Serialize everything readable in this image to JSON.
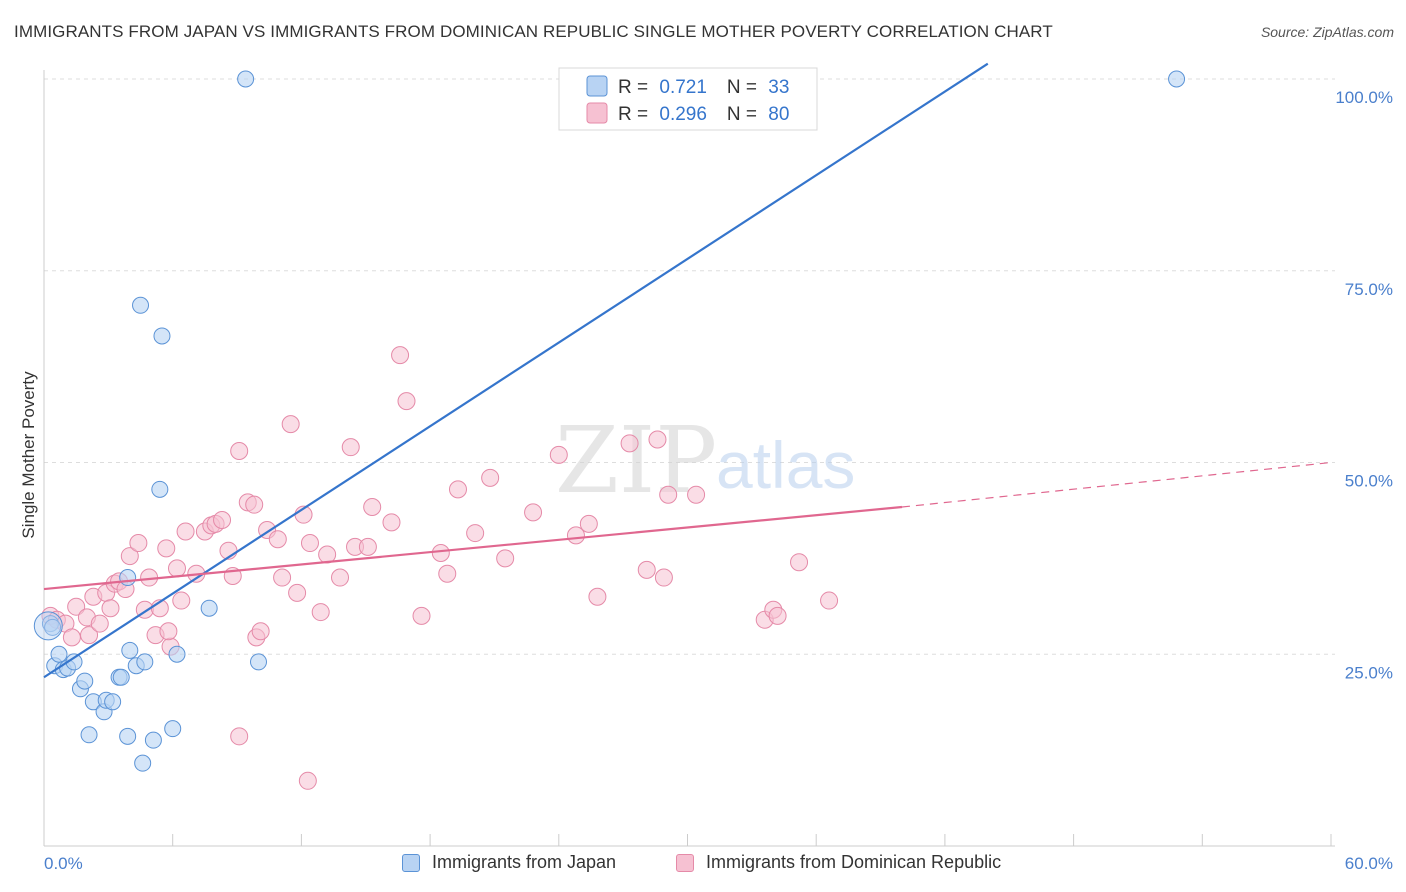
{
  "header": {
    "title": "IMMIGRANTS FROM JAPAN VS IMMIGRANTS FROM DOMINICAN REPUBLIC SINGLE MOTHER POVERTY CORRELATION CHART",
    "source": "Source: ZipAtlas.com"
  },
  "watermark": {
    "zip": "ZIP",
    "atlas": "atlas"
  },
  "colors": {
    "japan_fill": "#b8d3f3",
    "japan_stroke": "#5b93d6",
    "japan_line": "#3575cc",
    "dr_fill": "#f6c1d2",
    "dr_stroke": "#e58aa8",
    "dr_line": "#e0678f",
    "axis_label": "#4a7fcc",
    "grid": "#dddddd"
  },
  "legend_top": {
    "rows": [
      {
        "r_label": "R = ",
        "r_value": "0.721",
        "n_label": "N = ",
        "n_value": "33"
      },
      {
        "r_label": "R = ",
        "r_value": "0.296",
        "n_label": "N = ",
        "n_value": "80"
      }
    ]
  },
  "legend_bottom": {
    "japan": "Immigrants from Japan",
    "dr": "Immigrants from Dominican Republic"
  },
  "chart_data": {
    "type": "scatter",
    "title": "IMMIGRANTS FROM JAPAN VS IMMIGRANTS FROM DOMINICAN REPUBLIC SINGLE MOTHER POVERTY CORRELATION CHART",
    "xlabel": "",
    "ylabel": "Single Mother Poverty",
    "xlim": [
      0,
      60
    ],
    "ylim": [
      0,
      105
    ],
    "x_tick_labels": [
      "0.0%",
      "60.0%"
    ],
    "y_ticks": [
      25,
      50,
      75,
      100
    ],
    "y_tick_labels": [
      "25.0%",
      "50.0%",
      "75.0%",
      "100.0%"
    ],
    "series": [
      {
        "name": "Immigrants from Japan",
        "r": 0.721,
        "n": 33,
        "trend": {
          "x": [
            0,
            44
          ],
          "y": [
            22,
            102
          ],
          "dashed_extension": false
        },
        "points": [
          [
            0.3,
            29.0
          ],
          [
            0.4,
            28.5
          ],
          [
            0.5,
            23.5
          ],
          [
            0.7,
            25.0
          ],
          [
            0.9,
            23.0
          ],
          [
            1.1,
            23.2
          ],
          [
            1.4,
            24.0
          ],
          [
            1.7,
            20.5
          ],
          [
            1.9,
            21.5
          ],
          [
            2.3,
            18.8
          ],
          [
            2.1,
            14.5
          ],
          [
            2.8,
            17.5
          ],
          [
            2.9,
            19.0
          ],
          [
            3.2,
            18.8
          ],
          [
            3.5,
            22.0
          ],
          [
            3.6,
            22.0
          ],
          [
            3.9,
            35.0
          ],
          [
            3.9,
            14.3
          ],
          [
            4.0,
            25.5
          ],
          [
            4.3,
            23.5
          ],
          [
            4.6,
            10.8
          ],
          [
            4.7,
            24.0
          ],
          [
            5.1,
            13.8
          ],
          [
            4.5,
            70.5
          ],
          [
            5.5,
            66.5
          ],
          [
            5.4,
            46.5
          ],
          [
            6.0,
            15.3
          ],
          [
            6.2,
            25.0
          ],
          [
            7.7,
            31.0
          ],
          [
            10.0,
            24.0
          ],
          [
            9.4,
            100.0
          ],
          [
            52.8,
            100.0
          ],
          [
            0.2,
            28.7
          ]
        ]
      },
      {
        "name": "Immigrants from Dominican Republic",
        "r": 0.296,
        "n": 80,
        "trend": {
          "x": [
            0,
            40
          ],
          "y": [
            33.5,
            44.2
          ],
          "dashed_extension": {
            "x": [
              40,
              60
            ],
            "y": [
              44.2,
              50.0
            ]
          }
        },
        "points": [
          [
            0.3,
            30.0
          ],
          [
            0.6,
            29.5
          ],
          [
            1.0,
            29.0
          ],
          [
            1.3,
            27.2
          ],
          [
            1.5,
            31.2
          ],
          [
            2.0,
            29.8
          ],
          [
            2.1,
            27.5
          ],
          [
            2.3,
            32.5
          ],
          [
            2.6,
            29.0
          ],
          [
            2.9,
            33.0
          ],
          [
            3.1,
            31.0
          ],
          [
            3.3,
            34.2
          ],
          [
            3.5,
            34.5
          ],
          [
            3.8,
            33.5
          ],
          [
            4.0,
            37.8
          ],
          [
            4.4,
            39.5
          ],
          [
            4.7,
            30.8
          ],
          [
            4.9,
            35.0
          ],
          [
            5.2,
            27.5
          ],
          [
            5.4,
            31.0
          ],
          [
            5.7,
            38.8
          ],
          [
            5.9,
            26.0
          ],
          [
            6.2,
            36.2
          ],
          [
            6.4,
            32.0
          ],
          [
            6.6,
            41.0
          ],
          [
            7.1,
            35.5
          ],
          [
            7.5,
            41.0
          ],
          [
            7.8,
            41.8
          ],
          [
            8.0,
            42.0
          ],
          [
            8.3,
            42.5
          ],
          [
            8.6,
            38.5
          ],
          [
            8.8,
            35.2
          ],
          [
            9.1,
            51.5
          ],
          [
            9.5,
            44.8
          ],
          [
            9.9,
            27.2
          ],
          [
            9.8,
            44.5
          ],
          [
            10.1,
            28.0
          ],
          [
            10.4,
            41.2
          ],
          [
            10.9,
            40.0
          ],
          [
            11.1,
            35.0
          ],
          [
            11.5,
            55.0
          ],
          [
            11.8,
            33.0
          ],
          [
            12.1,
            43.2
          ],
          [
            12.4,
            39.5
          ],
          [
            12.9,
            30.5
          ],
          [
            13.2,
            38.0
          ],
          [
            13.8,
            35.0
          ],
          [
            14.3,
            52.0
          ],
          [
            14.5,
            39.0
          ],
          [
            15.1,
            39.0
          ],
          [
            15.3,
            44.2
          ],
          [
            16.2,
            42.2
          ],
          [
            16.6,
            64.0
          ],
          [
            16.9,
            58.0
          ],
          [
            17.6,
            30.0
          ],
          [
            18.5,
            38.2
          ],
          [
            18.8,
            35.5
          ],
          [
            19.3,
            46.5
          ],
          [
            20.1,
            40.8
          ],
          [
            20.8,
            48.0
          ],
          [
            21.5,
            37.5
          ],
          [
            22.8,
            43.5
          ],
          [
            24.0,
            51.0
          ],
          [
            24.8,
            40.5
          ],
          [
            25.4,
            42.0
          ],
          [
            25.8,
            32.5
          ],
          [
            27.3,
            52.5
          ],
          [
            28.1,
            36.0
          ],
          [
            28.6,
            53.0
          ],
          [
            28.9,
            35.0
          ],
          [
            29.1,
            45.8
          ],
          [
            30.4,
            45.8
          ],
          [
            33.6,
            29.5
          ],
          [
            34.0,
            30.8
          ],
          [
            34.2,
            30.0
          ],
          [
            35.2,
            37.0
          ],
          [
            36.6,
            32.0
          ],
          [
            12.3,
            8.5
          ],
          [
            9.1,
            14.3
          ],
          [
            5.8,
            28.0
          ]
        ]
      }
    ]
  }
}
